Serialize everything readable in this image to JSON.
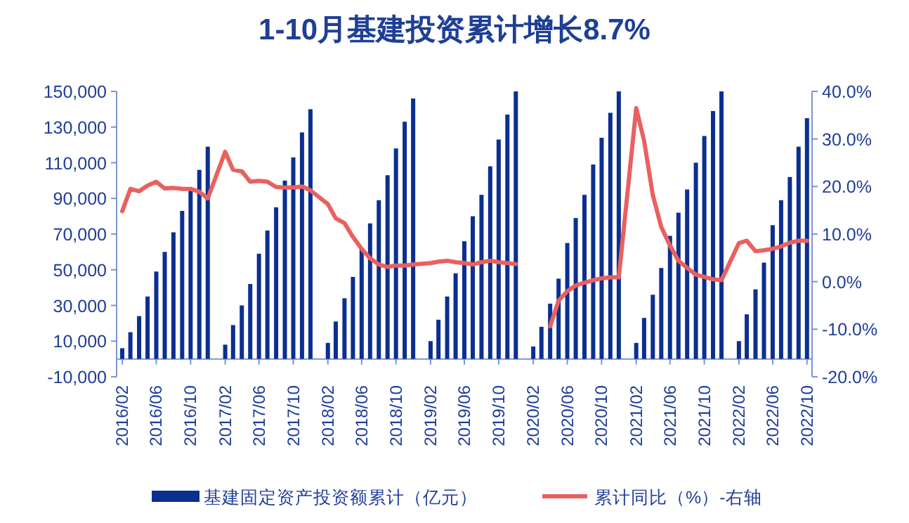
{
  "chart_data": {
    "type": "bar",
    "title": "1-10月基建投资累计增长8.7%",
    "x": [
      "2016-02",
      "2016-03",
      "2016-04",
      "2016-05",
      "2016-06",
      "2016-07",
      "2016-08",
      "2016-09",
      "2016-10",
      "2016-11",
      "2016-12",
      "2017-02",
      "2017-03",
      "2017-04",
      "2017-05",
      "2017-06",
      "2017-07",
      "2017-08",
      "2017-09",
      "2017-10",
      "2017-11",
      "2017-12",
      "2018-02",
      "2018-03",
      "2018-04",
      "2018-05",
      "2018-06",
      "2018-07",
      "2018-08",
      "2018-09",
      "2018-10",
      "2018-11",
      "2018-12",
      "2019-02",
      "2019-03",
      "2019-04",
      "2019-05",
      "2019-06",
      "2019-07",
      "2019-08",
      "2019-09",
      "2019-10",
      "2019-11",
      "2019-12",
      "2020-02",
      "2020-03",
      "2020-04",
      "2020-05",
      "2020-06",
      "2020-07",
      "2020-08",
      "2020-09",
      "2020-10",
      "2020-11",
      "2020-12",
      "2021-02",
      "2021-03",
      "2021-04",
      "2021-05",
      "2021-06",
      "2021-07",
      "2021-08",
      "2021-09",
      "2021-10",
      "2021-11",
      "2021-12",
      "2022-02",
      "2022-03",
      "2022-04",
      "2022-05",
      "2022-06",
      "2022-07",
      "2022-08",
      "2022-09",
      "2022-10"
    ],
    "series": [
      {
        "name": "基建固定资产投资额累计（亿元）",
        "color": "#0b2f91",
        "values": [
          6000,
          15000,
          24000,
          35000,
          49000,
          60000,
          71000,
          83000,
          95000,
          106000,
          119000,
          8000,
          19000,
          30000,
          42000,
          59000,
          72000,
          85000,
          100000,
          113000,
          127000,
          140000,
          9000,
          21000,
          34000,
          46000,
          62000,
          76000,
          89000,
          103000,
          118000,
          133000,
          146000,
          10000,
          22000,
          35000,
          48000,
          66000,
          80000,
          92000,
          108000,
          123000,
          137000,
          150000,
          7000,
          18000,
          31000,
          45000,
          65000,
          79000,
          92000,
          109000,
          124000,
          138000,
          150000,
          9000,
          23000,
          36000,
          51000,
          69000,
          82000,
          95000,
          110000,
          125000,
          139000,
          150000,
          10000,
          25000,
          39000,
          54000,
          75000,
          89000,
          102000,
          119000,
          135000
        ]
      },
      {
        "name": "累计同比（%）-右轴",
        "type": "line",
        "axis": "y2",
        "color": "#e8615f",
        "values": [
          14.8,
          19.5,
          19.0,
          20.2,
          21.0,
          19.6,
          19.7,
          19.5,
          19.5,
          18.9,
          17.5,
          27.3,
          23.5,
          23.2,
          21.0,
          21.2,
          21.0,
          19.9,
          19.8,
          19.8,
          20.0,
          19.2,
          16.3,
          13.3,
          12.3,
          9.4,
          6.9,
          4.9,
          3.6,
          3.1,
          3.4,
          3.4,
          3.6,
          3.9,
          4.2,
          4.4,
          4.1,
          3.9,
          3.6,
          4.1,
          4.4,
          4.1,
          3.9,
          3.7,
          null,
          null,
          -9.4,
          -4.0,
          -2.0,
          -0.8,
          -0.2,
          0.3,
          0.7,
          0.9,
          0.9,
          36.5,
          29.6,
          18.2,
          11.5,
          7.6,
          4.4,
          2.9,
          1.5,
          1.0,
          0.5,
          0.3,
          8.1,
          8.6,
          6.4,
          6.6,
          6.9,
          7.4,
          8.2,
          8.6,
          8.6
        ]
      }
    ],
    "xlim": [
      "2016-01-12",
      "2022-10-19"
    ],
    "xticks": [
      {
        "value": "2016-02",
        "label": "2016/02"
      },
      {
        "value": "2016-06",
        "label": "2016/06"
      },
      {
        "value": "2016-10",
        "label": "2016/10"
      },
      {
        "value": "2017-02",
        "label": "2017/02"
      },
      {
        "value": "2017-06",
        "label": "2017/06"
      },
      {
        "value": "2017-10",
        "label": "2017/10"
      },
      {
        "value": "2018-02",
        "label": "2018/02"
      },
      {
        "value": "2018-06",
        "label": "2018/06"
      },
      {
        "value": "2018-10",
        "label": "2018/10"
      },
      {
        "value": "2019-02",
        "label": "2019/02"
      },
      {
        "value": "2019-06",
        "label": "2019/06"
      },
      {
        "value": "2019-10",
        "label": "2019/10"
      },
      {
        "value": "2020-02",
        "label": "2020/02"
      },
      {
        "value": "2020-06",
        "label": "2020/06"
      },
      {
        "value": "2020-10",
        "label": "2020/10"
      },
      {
        "value": "2021-02",
        "label": "2021/02"
      },
      {
        "value": "2021-06",
        "label": "2021/06"
      },
      {
        "value": "2021-10",
        "label": "2021/10"
      },
      {
        "value": "2022-02",
        "label": "2022/02"
      },
      {
        "value": "2022-06",
        "label": "2022/06"
      },
      {
        "value": "2022-10",
        "label": "2022/10"
      }
    ],
    "ylim": [
      -10000,
      150000
    ],
    "yticks": [
      {
        "value": -10000,
        "label": "-10,000"
      },
      {
        "value": 10000,
        "label": "10,000"
      },
      {
        "value": 30000,
        "label": "30,000"
      },
      {
        "value": 50000,
        "label": "50,000"
      },
      {
        "value": 70000,
        "label": "70,000"
      },
      {
        "value": 90000,
        "label": "90,000"
      },
      {
        "value": 110000,
        "label": "110,000"
      },
      {
        "value": 130000,
        "label": "130,000"
      },
      {
        "value": 150000,
        "label": "150,000"
      }
    ],
    "y2lim": [
      -20,
      40
    ],
    "y2ticks": [
      {
        "value": -20,
        "label": "-20.0%"
      },
      {
        "value": -10,
        "label": "-10.0%"
      },
      {
        "value": 0,
        "label": "0.0%"
      },
      {
        "value": 10,
        "label": "10.0%"
      },
      {
        "value": 20,
        "label": "20.0%"
      },
      {
        "value": 30,
        "label": "30.0%"
      },
      {
        "value": 40,
        "label": "40.0%"
      }
    ],
    "legend": "bottom"
  }
}
